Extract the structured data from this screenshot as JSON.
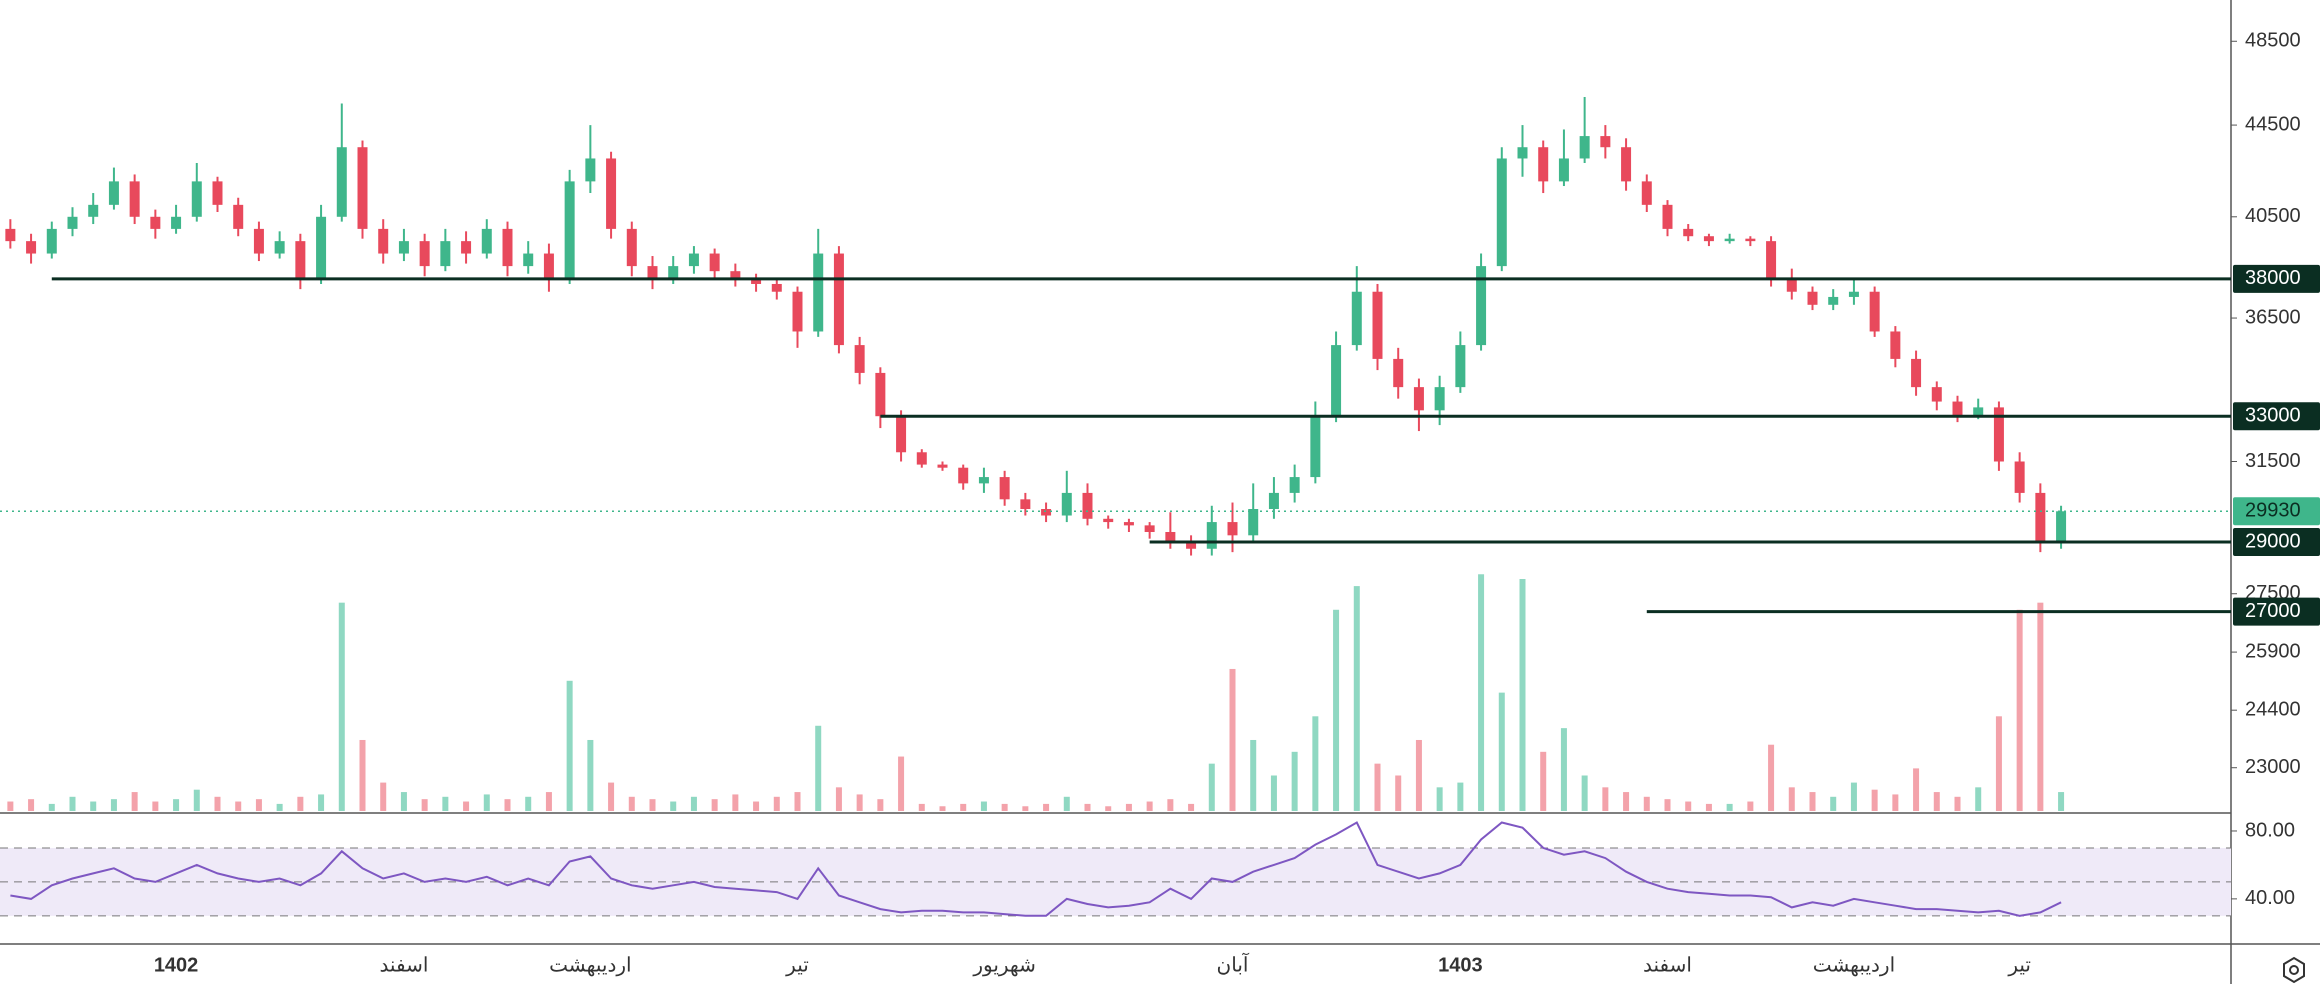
{
  "chart_data": {
    "type": "candlestick",
    "log_scale": true,
    "up_color": "#3fb68b",
    "down_color": "#e8495c",
    "volume_up_color": "#8fd8c2",
    "volume_down_color": "#f3a2aa",
    "ylim": [
      22000,
      50600
    ],
    "yticks": [
      48500,
      44500,
      40500,
      36500,
      31500,
      27500,
      25900,
      24400,
      23000
    ],
    "levels": [
      {
        "value": 38000,
        "from": 2
      },
      {
        "value": 33000,
        "from": 42
      },
      {
        "value": 29000,
        "from": 55
      },
      {
        "value": 27000,
        "from": 79
      }
    ],
    "level_color": "#0b2e22",
    "last_price": 29930,
    "last_price_color": "#3fb68b",
    "categories": [
      null,
      null,
      null,
      null,
      null,
      null,
      null,
      null,
      "1402",
      null,
      null,
      null,
      null,
      null,
      null,
      null,
      null,
      null,
      null,
      "اسفند",
      null,
      null,
      null,
      null,
      null,
      null,
      null,
      null,
      "اردیبهشت",
      null,
      null,
      null,
      null,
      null,
      null,
      null,
      null,
      null,
      "تیر",
      null,
      null,
      null,
      null,
      null,
      null,
      null,
      null,
      null,
      "شهریور",
      null,
      null,
      null,
      null,
      null,
      null,
      null,
      null,
      null,
      null,
      "آبان",
      null,
      null,
      null,
      null,
      null,
      null,
      null,
      null,
      null,
      null,
      "1403",
      null,
      null,
      null,
      null,
      null,
      null,
      null,
      null,
      null,
      "اسفند",
      null,
      null,
      null,
      null,
      null,
      null,
      null,
      null,
      "اردیبهشت",
      null,
      null,
      null,
      null,
      null,
      null,
      null,
      "تیر",
      null,
      null
    ],
    "candles": [
      [
        40000,
        40400,
        39200,
        39500
      ],
      [
        39500,
        39800,
        38600,
        39000
      ],
      [
        39000,
        40300,
        38800,
        40000
      ],
      [
        40000,
        40900,
        39700,
        40500
      ],
      [
        40500,
        41500,
        40200,
        41000
      ],
      [
        41000,
        42600,
        40800,
        42000
      ],
      [
        42000,
        42300,
        40200,
        40500
      ],
      [
        40500,
        40800,
        39600,
        40000
      ],
      [
        40000,
        41000,
        39800,
        40500
      ],
      [
        40500,
        42800,
        40300,
        42000
      ],
      [
        42000,
        42200,
        40700,
        41000
      ],
      [
        41000,
        41300,
        39700,
        40000
      ],
      [
        40000,
        40300,
        38700,
        39000
      ],
      [
        39000,
        39900,
        38800,
        39500
      ],
      [
        39500,
        39800,
        37600,
        38000
      ],
      [
        38000,
        41000,
        37800,
        40500
      ],
      [
        40500,
        45500,
        40300,
        43500
      ],
      [
        43500,
        43800,
        39600,
        40000
      ],
      [
        40000,
        40400,
        38600,
        39000
      ],
      [
        39000,
        40000,
        38700,
        39500
      ],
      [
        39500,
        39800,
        38100,
        38500
      ],
      [
        38500,
        40000,
        38300,
        39500
      ],
      [
        39500,
        39900,
        38600,
        39000
      ],
      [
        39000,
        40400,
        38800,
        40000
      ],
      [
        40000,
        40300,
        38100,
        38500
      ],
      [
        38500,
        39500,
        38200,
        39000
      ],
      [
        39000,
        39400,
        37500,
        38000
      ],
      [
        38000,
        42500,
        37800,
        42000
      ],
      [
        42000,
        44500,
        41500,
        43000
      ],
      [
        43000,
        43300,
        39600,
        40000
      ],
      [
        40000,
        40300,
        38100,
        38500
      ],
      [
        38500,
        38900,
        37600,
        38000
      ],
      [
        38000,
        38900,
        37800,
        38500
      ],
      [
        38500,
        39300,
        38200,
        39000
      ],
      [
        39000,
        39200,
        38000,
        38300
      ],
      [
        38300,
        38600,
        37700,
        38000
      ],
      [
        38000,
        38200,
        37500,
        37800
      ],
      [
        37800,
        38000,
        37200,
        37500
      ],
      [
        37500,
        37700,
        35400,
        36000
      ],
      [
        36000,
        40000,
        35800,
        39000
      ],
      [
        39000,
        39300,
        35200,
        35500
      ],
      [
        35500,
        35800,
        34100,
        34500
      ],
      [
        34500,
        34700,
        32600,
        33000
      ],
      [
        33000,
        33200,
        31500,
        31800
      ],
      [
        31800,
        31900,
        31300,
        31400
      ],
      [
        31400,
        31500,
        31200,
        31300
      ],
      [
        31300,
        31400,
        30600,
        30800
      ],
      [
        30800,
        31300,
        30500,
        31000
      ],
      [
        31000,
        31200,
        30100,
        30300
      ],
      [
        30300,
        30500,
        29800,
        30000
      ],
      [
        30000,
        30200,
        29600,
        29800
      ],
      [
        29800,
        31200,
        29600,
        30500
      ],
      [
        30500,
        30800,
        29500,
        29700
      ],
      [
        29700,
        29800,
        29400,
        29600
      ],
      [
        29600,
        29700,
        29300,
        29500
      ],
      [
        29500,
        29600,
        29100,
        29300
      ],
      [
        29300,
        29900,
        28800,
        29000
      ],
      [
        29000,
        29200,
        28600,
        28800
      ],
      [
        28800,
        30100,
        28600,
        29600
      ],
      [
        29600,
        30200,
        28700,
        29200
      ],
      [
        29200,
        30800,
        29000,
        30000
      ],
      [
        30000,
        31000,
        29700,
        30500
      ],
      [
        30500,
        31400,
        30200,
        31000
      ],
      [
        31000,
        33500,
        30800,
        33000
      ],
      [
        33000,
        36000,
        32800,
        35500
      ],
      [
        35500,
        38500,
        35300,
        37500
      ],
      [
        37500,
        37800,
        34600,
        35000
      ],
      [
        35000,
        35400,
        33600,
        34000
      ],
      [
        34000,
        34300,
        32500,
        33200
      ],
      [
        33200,
        34400,
        32700,
        34000
      ],
      [
        34000,
        36000,
        33800,
        35500
      ],
      [
        35500,
        39000,
        35300,
        38500
      ],
      [
        38500,
        43500,
        38300,
        43000
      ],
      [
        43000,
        44500,
        42200,
        43500
      ],
      [
        43500,
        43800,
        41500,
        42000
      ],
      [
        42000,
        44300,
        41800,
        43000
      ],
      [
        43000,
        45800,
        42800,
        44000
      ],
      [
        44000,
        44500,
        43000,
        43500
      ],
      [
        43500,
        43900,
        41600,
        42000
      ],
      [
        42000,
        42300,
        40700,
        41000
      ],
      [
        41000,
        41200,
        39700,
        40000
      ],
      [
        40000,
        40200,
        39500,
        39700
      ],
      [
        39700,
        39800,
        39300,
        39500
      ],
      [
        39500,
        39800,
        39400,
        39600
      ],
      [
        39600,
        39700,
        39300,
        39500
      ],
      [
        39500,
        39700,
        37700,
        38000
      ],
      [
        38000,
        38400,
        37200,
        37500
      ],
      [
        37500,
        37700,
        36800,
        37000
      ],
      [
        37000,
        37600,
        36800,
        37300
      ],
      [
        37300,
        38000,
        37000,
        37500
      ],
      [
        37500,
        37700,
        35800,
        36000
      ],
      [
        36000,
        36200,
        34700,
        35000
      ],
      [
        35000,
        35300,
        33700,
        34000
      ],
      [
        34000,
        34200,
        33200,
        33500
      ],
      [
        33500,
        33700,
        32800,
        33000
      ],
      [
        33000,
        33600,
        32900,
        33300
      ],
      [
        33300,
        33500,
        31200,
        31500
      ],
      [
        31500,
        31800,
        30200,
        30500
      ],
      [
        30500,
        30800,
        28700,
        29000
      ],
      [
        29000,
        30100,
        28800,
        29930
      ]
    ],
    "volume": [
      4,
      5,
      3,
      6,
      4,
      5,
      8,
      4,
      5,
      9,
      6,
      4,
      5,
      3,
      6,
      7,
      88,
      30,
      12,
      8,
      5,
      6,
      4,
      7,
      5,
      6,
      8,
      55,
      30,
      12,
      6,
      5,
      4,
      6,
      5,
      7,
      4,
      6,
      8,
      36,
      10,
      7,
      5,
      23,
      3,
      2,
      3,
      4,
      3,
      2,
      3,
      6,
      3,
      2,
      3,
      4,
      5,
      3,
      20,
      60,
      30,
      15,
      25,
      40,
      85,
      95,
      20,
      15,
      30,
      10,
      12,
      100,
      50,
      98,
      25,
      35,
      15,
      10,
      8,
      6,
      5,
      4,
      3,
      3,
      4,
      28,
      10,
      8,
      6,
      12,
      9,
      7,
      18,
      8,
      6,
      10,
      40,
      85,
      88,
      8
    ],
    "rsi": {
      "color": "#7e57c2",
      "band_color": "#efeaf8",
      "ylim": [
        14,
        90
      ],
      "yticks": [
        {
          "value": 80,
          "label": "80.00"
        },
        {
          "value": 40,
          "label": "40.00"
        }
      ],
      "band": [
        30,
        70
      ],
      "levels": [
        70,
        50,
        30
      ],
      "values": [
        42,
        40,
        48,
        52,
        55,
        58,
        52,
        50,
        55,
        60,
        55,
        52,
        50,
        52,
        48,
        55,
        68,
        58,
        52,
        55,
        50,
        52,
        50,
        53,
        48,
        52,
        48,
        62,
        65,
        52,
        48,
        46,
        48,
        50,
        47,
        46,
        45,
        44,
        40,
        58,
        42,
        38,
        34,
        32,
        33,
        33,
        32,
        32,
        31,
        30,
        30,
        40,
        37,
        35,
        36,
        38,
        46,
        40,
        52,
        50,
        56,
        60,
        64,
        72,
        78,
        85,
        60,
        56,
        52,
        55,
        60,
        75,
        85,
        82,
        70,
        66,
        68,
        64,
        56,
        50,
        46,
        44,
        43,
        42,
        42,
        41,
        35,
        38,
        36,
        40,
        38,
        36,
        34,
        34,
        33,
        32,
        33,
        30,
        32,
        38
      ]
    }
  }
}
